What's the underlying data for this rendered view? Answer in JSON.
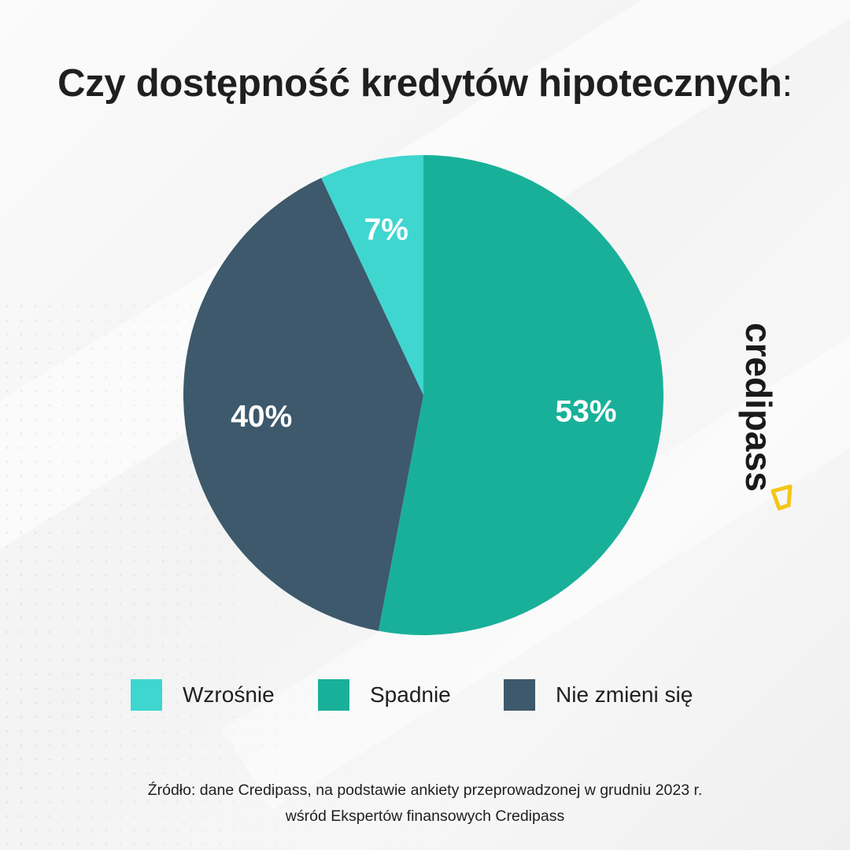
{
  "title": {
    "text": "Czy dostępność kredytów hipotecznych",
    "colon": ":"
  },
  "chart_data": {
    "type": "pie",
    "slices": [
      {
        "label": "Wzrośnie",
        "value": 7,
        "display": "7%",
        "color": "#3fd6d0"
      },
      {
        "label": "Spadnie",
        "value": 53,
        "display": "53%",
        "color": "#19b09a"
      },
      {
        "label": "Nie zmieni się",
        "value": 40,
        "display": "40%",
        "color": "#3d596b"
      }
    ],
    "start_angle": "12 o'clock",
    "order": [
      "Spadnie",
      "Nie zmieni się",
      "Wzrośnie"
    ],
    "direction": "clockwise",
    "legend_position": "bottom"
  },
  "legend": {
    "items": [
      {
        "label": "Wzrośnie",
        "color": "#3fd6d0"
      },
      {
        "label": "Spadnie",
        "color": "#19b09a"
      },
      {
        "label": "Nie zmieni się",
        "color": "#3d596b"
      }
    ]
  },
  "logo": {
    "text": "credipass",
    "accent_color": "#f5c518"
  },
  "source": {
    "line1": "Źródło: dane Credipass, na podstawie ankiety przeprowadzonej w grudniu 2023 r.",
    "line2": "wśród Ekspertów finansowych Credipass"
  }
}
